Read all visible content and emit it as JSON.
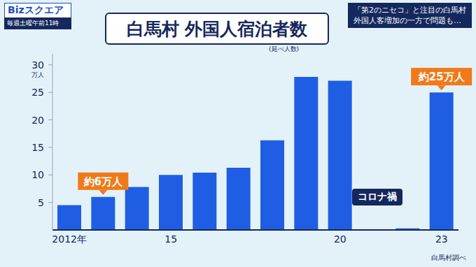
{
  "chart_data": {
    "type": "bar",
    "title": "白馬村 外国人宿泊者数",
    "subtitle": "(延べ人数)",
    "y_label": "万人",
    "source": "白馬村調べ",
    "header": {
      "program": "Bizスクエア",
      "schedule": "毎週土曜午前11時",
      "caption": [
        "「第2のニセコ」と注目の白馬村",
        "外国人客増加の一方で問題も…"
      ]
    },
    "annotations": [
      "コロナ禍"
    ],
    "categories": [
      "2012年",
      null,
      null,
      "15",
      null,
      null,
      null,
      null,
      "20",
      null,
      null,
      "23"
    ],
    "values": [
      4.5,
      6,
      7.8,
      10,
      10.4,
      11.3,
      16.3,
      27.8,
      27.1,
      0.1,
      0.3,
      25
    ],
    "value_labels": [
      null,
      "約6万人",
      null,
      null,
      null,
      null,
      null,
      null,
      null,
      null,
      null,
      "約25万人"
    ],
    "data_labels": true,
    "color": "#1f5ee3",
    "ylim": [
      0,
      32
    ],
    "yticks": [
      5,
      10,
      15,
      20,
      25,
      30
    ],
    "grid": false
  }
}
